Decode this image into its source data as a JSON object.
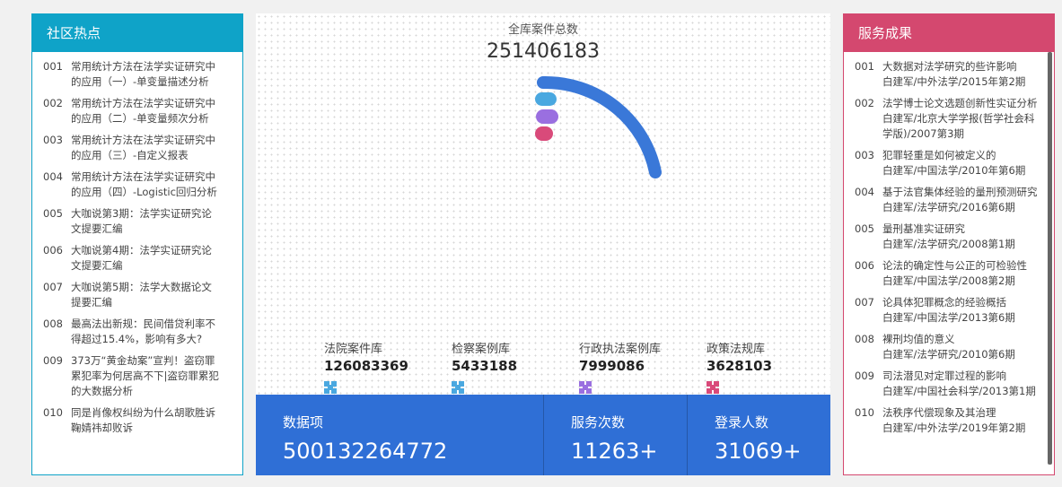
{
  "left_panel": {
    "title": "社区热点",
    "items": [
      {
        "num": "001",
        "text": "常用统计方法在法学实证研究中的应用（一）-单变量描述分析"
      },
      {
        "num": "002",
        "text": "常用统计方法在法学实证研究中的应用（二）-单变量频次分析"
      },
      {
        "num": "003",
        "text": "常用统计方法在法学实证研究中的应用（三）-自定义报表"
      },
      {
        "num": "004",
        "text": "常用统计方法在法学实证研究中的应用（四）-Logistic回归分析"
      },
      {
        "num": "005",
        "text": "大咖说第3期：法学实证研究论文提要汇编"
      },
      {
        "num": "006",
        "text": "大咖说第4期：法学实证研究论文提要汇编"
      },
      {
        "num": "007",
        "text": "大咖说第5期：法学大数据论文提要汇编"
      },
      {
        "num": "008",
        "text": "最高法出新规：民间借贷利率不得超过15.4%，影响有多大?"
      },
      {
        "num": "009",
        "text": "373万“黄金劫案”宣判！盗窃罪累犯率为何居高不下|盗窃罪累犯的大数据分析"
      },
      {
        "num": "010",
        "text": "同是肖像权纠纷为什么胡歌胜诉鞠婧祎却败诉"
      }
    ]
  },
  "center": {
    "total_label": "全库案件总数",
    "total": 251406183,
    "libraries": [
      {
        "name": "法院案件库",
        "value": 126083369
      },
      {
        "name": "检察案例库",
        "value": 5433188
      },
      {
        "name": "行政执法案例库",
        "value": 7999086
      },
      {
        "name": "政策法规库",
        "value": 3628103
      }
    ],
    "stats": [
      {
        "label": "数据项",
        "value": 500132264772
      },
      {
        "label": "服务次数",
        "value": "11263+"
      },
      {
        "label": "登录人数",
        "value": "31069+"
      }
    ]
  },
  "right_panel": {
    "title": "服务成果",
    "items": [
      {
        "num": "001",
        "title": "大数据对法学研究的些许影响",
        "source": "白建军/中外法学/2015年第2期"
      },
      {
        "num": "002",
        "title": "法学博士论文选题创新性实证分析",
        "source": "白建军/北京大学学报(哲学社会科学版)/2007第3期"
      },
      {
        "num": "003",
        "title": "犯罪轻重是如何被定义的",
        "source": "白建军/中国法学/2010年第6期"
      },
      {
        "num": "004",
        "title": "基于法官集体经验的量刑预测研究",
        "source": "白建军/法学研究/2016第6期"
      },
      {
        "num": "005",
        "title": "量刑基准实证研究",
        "source": "白建军/法学研究/2008第1期"
      },
      {
        "num": "006",
        "title": "论法的确定性与公正的可检验性",
        "source": "白建军/中国法学/2008第2期"
      },
      {
        "num": "007",
        "title": "论具体犯罪概念的经验概括",
        "source": "白建军/中国法学/2013第6期"
      },
      {
        "num": "008",
        "title": "裸刑均值的意义",
        "source": "白建军/法学研究/2010第6期"
      },
      {
        "num": "009",
        "title": "司法潜见对定罪过程的影响",
        "source": "白建军/中国社会科学/2013第1期"
      },
      {
        "num": "010",
        "title": "法秩序代偿现象及其治理",
        "source": "白建军/中外法学/2019年第2期"
      }
    ]
  }
}
